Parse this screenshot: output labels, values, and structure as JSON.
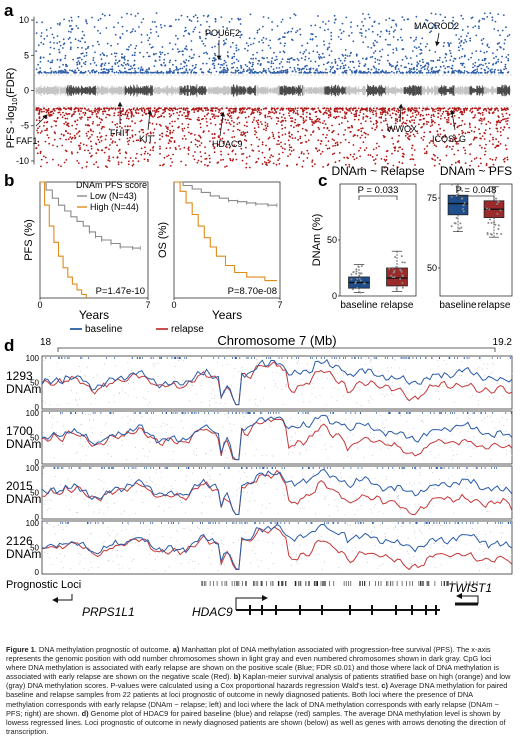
{
  "figure": {
    "panel_labels": [
      "a",
      "b",
      "c",
      "d"
    ],
    "caption": {
      "label": "Figure 1",
      "title": "DNA methylation prognostic of outcome.",
      "a_label": "a)",
      "a_text": "Manhattan plot of DNA methylation associated with progression-free survival (PFS). The x-axis represents the genomic position with odd number chromosomes shown in light gray and even numbered chromosomes shown in dark gray. CpG loci where DNA methylation is associated with early relapse are shown on the positive scale (Blue; FDR ≤0.01) and those where lack of DNA methylation is associated with early relapse are shown on the negative scale (Red).",
      "b_label": "b)",
      "b_text": "Kaplan-meier survival analysis of patients stratified base on high (orange) and low (gray) DNA methylation scores. P-values were calculated using a Cox proportional hazards regression Wald's test.",
      "c_label": "c)",
      "c_text": "Average DNA methylation for paired baseline and relapse samples from 22 patients at loci prognostic of outcome in newly diagnosed patients. Both loci where the presence of DNA methylation corresponds with early relapse (DNAm ~ relapse; left) and loci where the lack of DNA methylation corresponds with early relapse (DNAm ~ PFS; right) are shown.",
      "d_label": "d)",
      "d_text": "Genome plot of HDAC9 for paired baseline (blue) and relapse (red) samples. The average DNA methylation level is shown by lowess regressed lines. Loci prognostic of outcome in newly diagnosed patients are shown (below) as well as genes with arrows denoting the direction of transcription."
    }
  },
  "chart_data": [
    {
      "type": "scatter",
      "panel": "a",
      "ylabel_main": "PFS -log",
      "ylabel_sub": "10",
      "ylabel_tail": "(FDR)",
      "yticks": [
        "10",
        "5",
        "0",
        "-5",
        "-10"
      ],
      "ylim": [
        -11,
        12
      ],
      "genes_positive": [
        "POU6F2",
        "MACROD2"
      ],
      "genes_negative": [
        "FAF1",
        "FHIT",
        "KIT",
        "HDAC9",
        "WWOX",
        "ICOSLG"
      ],
      "colors": {
        "positive": "#2a5ca8",
        "negative": "#b01818",
        "odd_chrom": "#c4c4c4",
        "even_chrom": "#4a4a4a"
      }
    },
    {
      "type": "line",
      "panel": "b-pfs",
      "ylabel": "PFS (%)",
      "xlabel": "Years",
      "xticks": [
        "0",
        "7"
      ],
      "xlim": [
        0,
        7
      ],
      "ylim": [
        0,
        100
      ],
      "legend_title": "DNAm PFS score",
      "series": [
        {
          "name": "Low (N=43)",
          "color": "#8a8a8a",
          "x": [
            0,
            0.4,
            0.8,
            1.2,
            1.6,
            2.0,
            2.4,
            2.8,
            3.2,
            3.6,
            4.0,
            4.6,
            5.2,
            6.0,
            6.5
          ],
          "y": [
            100,
            93,
            86,
            80,
            75,
            70,
            66,
            62,
            57,
            53,
            50,
            47,
            44,
            43,
            43
          ]
        },
        {
          "name": "High (N=44)",
          "color": "#e08a1c",
          "x": [
            0,
            0.3,
            0.6,
            0.9,
            1.2,
            1.5,
            1.8,
            2.1,
            2.4,
            2.7,
            3.0
          ],
          "y": [
            100,
            80,
            62,
            48,
            36,
            26,
            18,
            12,
            7,
            3,
            0
          ]
        }
      ],
      "pvalue": "P=1.47e-10"
    },
    {
      "type": "line",
      "panel": "b-os",
      "ylabel": "OS (%)",
      "xlabel": "Years",
      "xticks": [
        "0",
        "7"
      ],
      "xlim": [
        0,
        7
      ],
      "ylim": [
        0,
        100
      ],
      "series": [
        {
          "color": "#8a8a8a",
          "x": [
            0,
            0.6,
            1.2,
            1.8,
            2.4,
            3.0,
            3.6,
            4.2,
            4.8,
            5.4,
            6.2,
            6.8
          ],
          "y": [
            100,
            97,
            94,
            91,
            88,
            86,
            84,
            83,
            82,
            81,
            80,
            80
          ]
        },
        {
          "color": "#e08a1c",
          "x": [
            0,
            0.4,
            0.8,
            1.2,
            1.6,
            2.0,
            2.4,
            2.8,
            3.4,
            4.0,
            4.8,
            6.0,
            6.8
          ],
          "y": [
            100,
            92,
            82,
            72,
            62,
            52,
            44,
            36,
            28,
            22,
            18,
            15,
            15
          ]
        }
      ],
      "pvalue": "P=8.70e-08"
    },
    {
      "type": "box",
      "panel": "c-relapse",
      "title": "DNAm ~ Relapse",
      "ylabel": "DNAm (%)",
      "ylim": [
        0,
        100
      ],
      "yticks": [
        "0",
        "50"
      ],
      "categories": [
        "baseline",
        "relapse"
      ],
      "colors": [
        "#1f4e8c",
        "#9b2a2a"
      ],
      "q1": [
        7,
        9
      ],
      "median": [
        12,
        16
      ],
      "q3": [
        17,
        25
      ],
      "whisker_low": [
        3,
        4
      ],
      "whisker_high": [
        28,
        40
      ],
      "pvalue": "P = 0.033"
    },
    {
      "type": "box",
      "panel": "c-pfs",
      "title": "DNAm ~ PFS",
      "ylim": [
        40,
        80
      ],
      "yticks": [
        "50",
        "75"
      ],
      "categories": [
        "baseline",
        "relapse"
      ],
      "colors": [
        "#1f4e8c",
        "#9b2a2a"
      ],
      "q1": [
        69,
        68
      ],
      "median": [
        73,
        71
      ],
      "q3": [
        76,
        74
      ],
      "whisker_low": [
        63,
        61
      ],
      "whisker_high": [
        80,
        79
      ],
      "pvalue": "P = 0.048"
    },
    {
      "type": "line",
      "panel": "d",
      "title": "Chromosome 7 (Mb)",
      "xrange_labels": [
        "18",
        "19.2"
      ],
      "ylim": [
        0,
        100
      ],
      "yticks": [
        "100",
        "50",
        "0"
      ],
      "legend": [
        {
          "name": "baseline",
          "color": "#2a5ca8"
        },
        {
          "name": "relapse",
          "color": "#c43a3a"
        }
      ],
      "tracks": [
        {
          "name": "1293",
          "unit": "DNAm"
        },
        {
          "name": "1700",
          "unit": "DNAm"
        },
        {
          "name": "2015",
          "unit": "DNAm"
        },
        {
          "name": "2126",
          "unit": "DNAm"
        }
      ],
      "loci_label": "Prognostic Loci",
      "genes": [
        "PRPS1L1",
        "HDAC9",
        "TWIST1"
      ]
    }
  ]
}
